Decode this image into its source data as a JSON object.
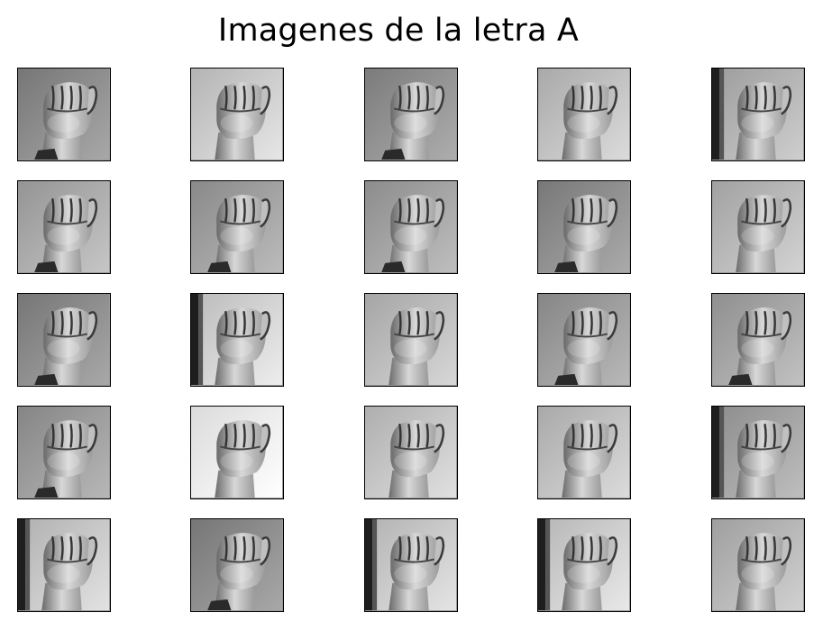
{
  "figure": {
    "title": "Imagenes de la letra A"
  },
  "grid": {
    "rows": 5,
    "cols": 5,
    "images": [
      {
        "bg": "#8a8a8a",
        "variant": "dark-bg"
      },
      {
        "bg": "#c8c8c8",
        "variant": "light-bg"
      },
      {
        "bg": "#8f8f8f",
        "variant": "dark-bg"
      },
      {
        "bg": "#bdbdbd",
        "variant": "light-bg"
      },
      {
        "bg": "#b0b0b0",
        "variant": "curtain-left"
      },
      {
        "bg": "#a8a8a8",
        "variant": "mid-bg"
      },
      {
        "bg": "#9d9d9d",
        "variant": "mid-bg"
      },
      {
        "bg": "#a0a0a0",
        "variant": "mid-bg"
      },
      {
        "bg": "#8c8c8c",
        "variant": "dark-bg"
      },
      {
        "bg": "#b5b5b5",
        "variant": "light-bg"
      },
      {
        "bg": "#8a8a8a",
        "variant": "dark-bg"
      },
      {
        "bg": "#cfcfcf",
        "variant": "curtain-left"
      },
      {
        "bg": "#b9b9b9",
        "variant": "light-bg"
      },
      {
        "bg": "#9a9a9a",
        "variant": "mid-bg"
      },
      {
        "bg": "#a3a3a3",
        "variant": "mid-bg"
      },
      {
        "bg": "#999999",
        "variant": "mid-bg"
      },
      {
        "bg": "#efefef",
        "variant": "very-light"
      },
      {
        "bg": "#c2c2c2",
        "variant": "light-bg"
      },
      {
        "bg": "#bdbdbd",
        "variant": "light-bg"
      },
      {
        "bg": "#a0a0a0",
        "variant": "curtain-left"
      },
      {
        "bg": "#c4c4c4",
        "variant": "curtain-left"
      },
      {
        "bg": "#8a8a8a",
        "variant": "dark-bg"
      },
      {
        "bg": "#c6c6c6",
        "variant": "curtain-left"
      },
      {
        "bg": "#cacaca",
        "variant": "curtain-left"
      },
      {
        "bg": "#b3b3b3",
        "variant": "light-bg"
      }
    ]
  }
}
